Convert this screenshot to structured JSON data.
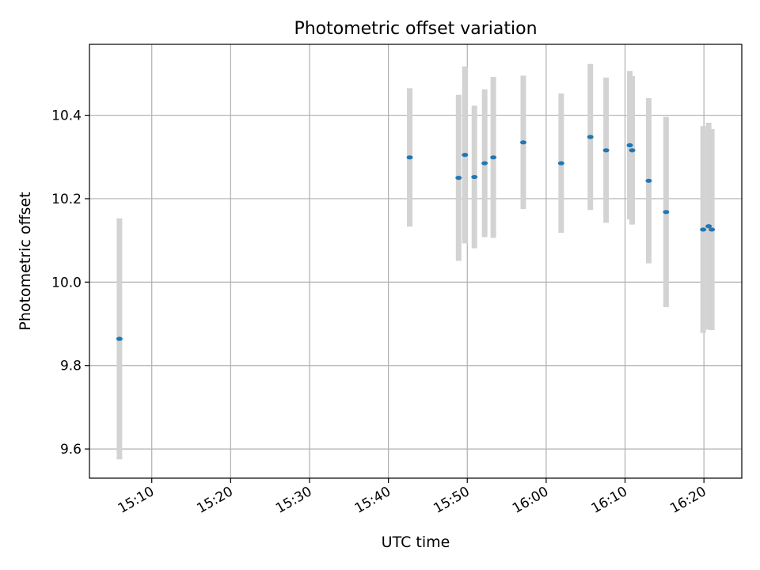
{
  "chart_data": {
    "type": "scatter",
    "title": "Photometric offset variation",
    "xlabel": "UTC time",
    "ylabel": "Photometric offset",
    "grid": true,
    "legend": "none",
    "x_unit": "minutes since 15:00 UTC",
    "xlim": [
      2.1,
      84.8
    ],
    "ylim": [
      9.53,
      10.57
    ],
    "x_ticks": [
      {
        "value": 10,
        "label": "15:10"
      },
      {
        "value": 20,
        "label": "15:20"
      },
      {
        "value": 30,
        "label": "15:30"
      },
      {
        "value": 40,
        "label": "15:40"
      },
      {
        "value": 50,
        "label": "15:50"
      },
      {
        "value": 60,
        "label": "16:00"
      },
      {
        "value": 70,
        "label": "16:10"
      },
      {
        "value": 80,
        "label": "16:20"
      }
    ],
    "y_ticks": [
      {
        "value": 9.6,
        "label": "9.6"
      },
      {
        "value": 9.8,
        "label": "9.8"
      },
      {
        "value": 10.0,
        "label": "10.0"
      },
      {
        "value": 10.2,
        "label": "10.2"
      },
      {
        "value": 10.4,
        "label": "10.4"
      }
    ],
    "marker_color": "#1f77b4",
    "errorbar_color": "#d3d3d3",
    "points": [
      {
        "x": 5.9,
        "y": 9.864,
        "err": 0.289
      },
      {
        "x": 42.7,
        "y": 10.299,
        "err": 0.166
      },
      {
        "x": 48.9,
        "y": 10.25,
        "err": 0.199
      },
      {
        "x": 49.7,
        "y": 10.305,
        "err": 0.212
      },
      {
        "x": 50.9,
        "y": 10.252,
        "err": 0.171
      },
      {
        "x": 52.2,
        "y": 10.285,
        "err": 0.177
      },
      {
        "x": 53.3,
        "y": 10.299,
        "err": 0.193
      },
      {
        "x": 57.1,
        "y": 10.335,
        "err": 0.16
      },
      {
        "x": 61.9,
        "y": 10.285,
        "err": 0.167
      },
      {
        "x": 65.6,
        "y": 10.348,
        "err": 0.175
      },
      {
        "x": 67.6,
        "y": 10.316,
        "err": 0.174
      },
      {
        "x": 70.6,
        "y": 10.328,
        "err": 0.178
      },
      {
        "x": 70.9,
        "y": 10.316,
        "err": 0.178
      },
      {
        "x": 73.0,
        "y": 10.243,
        "err": 0.198
      },
      {
        "x": 75.2,
        "y": 10.168,
        "err": 0.228
      },
      {
        "x": 79.9,
        "y": 10.126,
        "err": 0.248
      },
      {
        "x": 80.6,
        "y": 10.134,
        "err": 0.248
      },
      {
        "x": 81.0,
        "y": 10.126,
        "err": 0.241
      }
    ]
  }
}
